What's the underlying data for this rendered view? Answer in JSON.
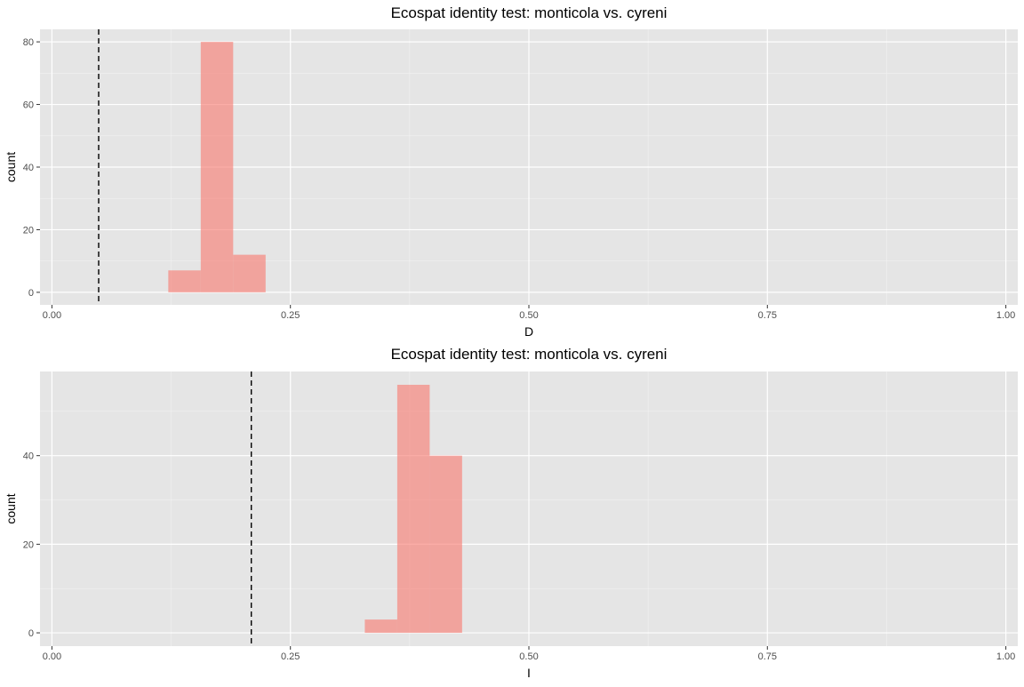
{
  "colors": {
    "panel_background": "#E5E5E5",
    "grid_major": "#FFFFFF",
    "grid_minor": "#F2F2F2",
    "bar_fill": "#F8766D",
    "bar_opacity": 0.6,
    "reference_line": "#000000",
    "tick_text": "#4D4D4D"
  },
  "chart_data": [
    {
      "type": "histogram",
      "title": "Ecospat identity test: monticola vs. cyreni",
      "xlabel": "D",
      "ylabel": "count",
      "xlim": [
        -0.0125,
        1.0125
      ],
      "ylim": [
        -4,
        84
      ],
      "x_ticks": [
        0,
        0.25,
        0.5,
        0.75,
        1
      ],
      "x_tick_labels": [
        "0.00",
        "0.25",
        "0.50",
        "0.75",
        "1.00"
      ],
      "y_ticks": [
        0,
        20,
        40,
        60,
        80
      ],
      "y_tick_labels": [
        "0",
        "20",
        "40",
        "60",
        "80"
      ],
      "grid": true,
      "bins": [
        {
          "x0": 0.122,
          "x1": 0.156,
          "count": 7
        },
        {
          "x0": 0.156,
          "x1": 0.19,
          "count": 80
        },
        {
          "x0": 0.19,
          "x1": 0.224,
          "count": 12
        }
      ],
      "observed_value": 0.049
    },
    {
      "type": "histogram",
      "title": "Ecospat identity test: monticola vs. cyreni",
      "xlabel": "I",
      "ylabel": "count",
      "xlim": [
        -0.0125,
        1.0125
      ],
      "ylim": [
        -3,
        59
      ],
      "x_ticks": [
        0,
        0.25,
        0.5,
        0.75,
        1
      ],
      "x_tick_labels": [
        "0.00",
        "0.25",
        "0.50",
        "0.75",
        "1.00"
      ],
      "y_ticks": [
        0,
        20,
        40
      ],
      "y_tick_labels": [
        "0",
        "20",
        "40"
      ],
      "grid": true,
      "bins": [
        {
          "x0": 0.328,
          "x1": 0.362,
          "count": 3
        },
        {
          "x0": 0.362,
          "x1": 0.396,
          "count": 56
        },
        {
          "x0": 0.396,
          "x1": 0.43,
          "count": 40
        }
      ],
      "observed_value": 0.209
    }
  ]
}
